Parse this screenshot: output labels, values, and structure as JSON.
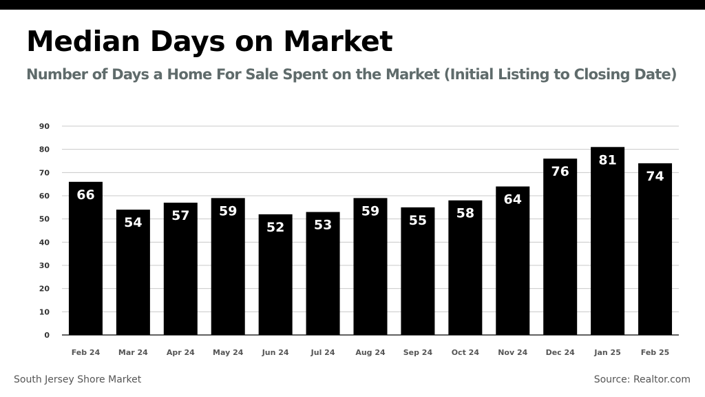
{
  "header": {
    "title": "Median Days on Market",
    "subtitle": "Number of Days a Home For Sale Spent on the Market (Initial Listing to Closing Date)"
  },
  "footer": {
    "left": "South Jersey Shore Market",
    "right": "Source: Realtor.com"
  },
  "colors": {
    "bar": "#000000",
    "grid": "#c8c8c8",
    "tick_label": "#333333",
    "category_label": "#555555",
    "subtitle": "#5f6b6b"
  },
  "chart_data": {
    "type": "bar",
    "title": "Median Days on Market",
    "subtitle": "Number of Days a Home For Sale Spent on the Market (Initial Listing to Closing Date)",
    "categories": [
      "Feb 24",
      "Mar 24",
      "Apr 24",
      "May 24",
      "Jun 24",
      "Jul 24",
      "Aug 24",
      "Sep 24",
      "Oct 24",
      "Nov 24",
      "Dec 24",
      "Jan 25",
      "Feb 25"
    ],
    "values": [
      66,
      54,
      57,
      59,
      52,
      53,
      59,
      55,
      58,
      64,
      76,
      81,
      74
    ],
    "xlabel": "",
    "ylabel": "",
    "ylim": [
      0,
      90
    ],
    "yticks": [
      0,
      10,
      20,
      30,
      40,
      50,
      60,
      70,
      80,
      90
    ],
    "grid": true,
    "data_labels": true
  }
}
